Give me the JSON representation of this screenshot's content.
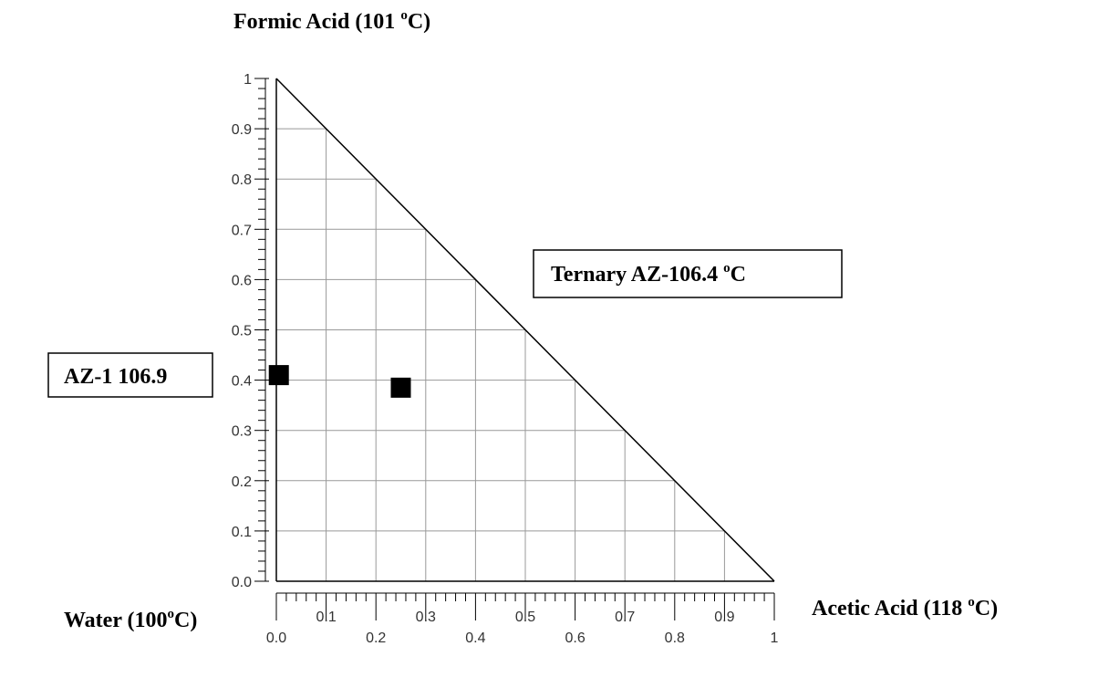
{
  "chart_data": {
    "type": "scatter",
    "chart_kind": "ternary-right-triangle",
    "vertices": {
      "top": {
        "name": "Formic Acid",
        "temp_prefix": "(101 ",
        "temp_sup": "o",
        "temp_suffix": "C)"
      },
      "bottom_left": {
        "name": "Water",
        "temp_prefix": "(100",
        "temp_sup": "o",
        "temp_suffix": "C)"
      },
      "bottom_right": {
        "name": "Acetic Acid",
        "temp_prefix": "(118 ",
        "temp_sup": "o",
        "temp_suffix": "C)"
      }
    },
    "xlim": [
      0,
      1
    ],
    "ylim": [
      0,
      1
    ],
    "grid": true,
    "x_ticks_major": [
      "0.0",
      "0.2",
      "0.4",
      "0.6",
      "0.8",
      "1"
    ],
    "x_ticks_minor": [
      "0.1",
      "0.3",
      "0.5",
      "0.7",
      "0.9"
    ],
    "y_ticks": [
      "0.0",
      "0.1",
      "0.2",
      "0.3",
      "0.4",
      "0.5",
      "0.6",
      "0.7",
      "0.8",
      "0.9",
      "1"
    ],
    "points": [
      {
        "x": 0.005,
        "y": 0.41,
        "label": "AZ-1 106.9"
      },
      {
        "x": 0.25,
        "y": 0.385,
        "label_prefix": "Ternary AZ-106.4 ",
        "label_sup": "o",
        "label_suffix": "C"
      }
    ],
    "annotations": [
      {
        "text": "AZ-1 106.9"
      },
      {
        "text_prefix": "Ternary AZ-106.4 ",
        "text_sup": "o",
        "text_suffix": "C"
      }
    ],
    "colors": {
      "axis": "#000000",
      "grid": "#999999",
      "marker": "#000000"
    }
  }
}
